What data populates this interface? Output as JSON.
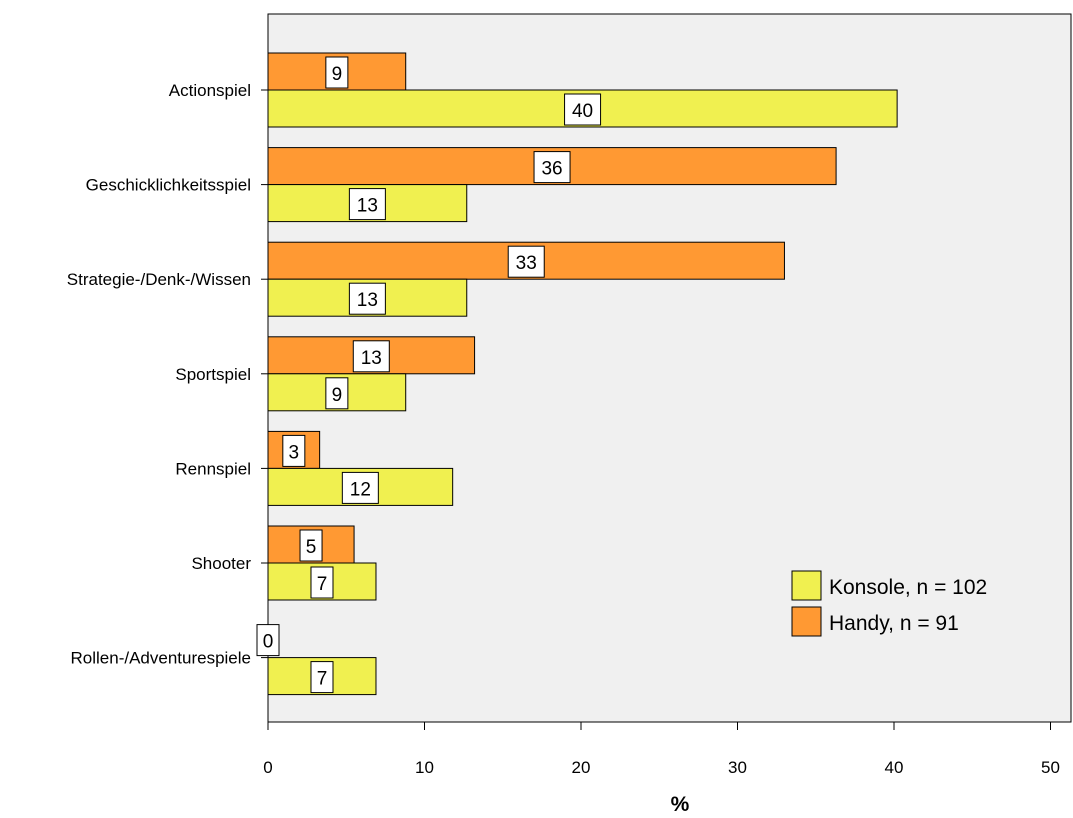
{
  "chart_data": {
    "type": "bar",
    "orientation": "horizontal",
    "categories": [
      "Actionspiel",
      "Geschicklichkeitsspiel",
      "Strategie-/Denk-/Wissen",
      "Sportspiel",
      "Rennspiel",
      "Shooter",
      "Rollen-/Adventurespiele"
    ],
    "series": [
      {
        "name": "Handy, n = 91",
        "values": [
          8.8,
          36.3,
          33.0,
          13.2,
          3.3,
          5.5,
          0
        ],
        "labels": [
          "9",
          "36",
          "33",
          "13",
          "3",
          "5",
          "0"
        ],
        "color": "#ff9933"
      },
      {
        "name": "Konsole, n = 102",
        "values": [
          40.2,
          12.7,
          12.7,
          8.8,
          11.8,
          6.9,
          6.9
        ],
        "labels": [
          "40",
          "13",
          "13",
          "9",
          "12",
          "7",
          "7"
        ],
        "color": "#f0f050"
      }
    ],
    "legend_order": [
      "Konsole, n = 102",
      "Handy, n = 91"
    ],
    "legend_position": "bottom-right",
    "xlabel": "%",
    "ylabel": "",
    "xlim": [
      0,
      51
    ],
    "xticks": [
      "0",
      "10",
      "20",
      "30",
      "40",
      "50"
    ],
    "plot_background": "#f0f0f0",
    "grid": false
  }
}
